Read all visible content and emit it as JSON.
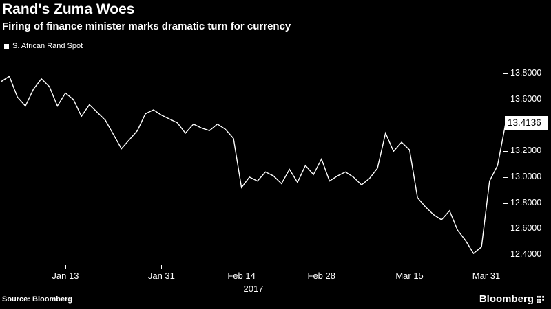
{
  "footer": {
    "source": "Source: Bloomberg",
    "brand": "Bloomberg"
  },
  "colors": {
    "background": "#000000",
    "line": "#ffffff",
    "text": "#ffffff",
    "badge_bg": "#ffffff",
    "badge_text": "#000000"
  },
  "chart_data": {
    "type": "line",
    "title": "Rand's Zuma Woes",
    "subtitle": "Firing of finance minister marks dramatic turn for currency",
    "legend_position": "top-left",
    "grid": false,
    "background": "#000000",
    "last_price_label": "13.4136",
    "x_axis": {
      "tick_labels": [
        "Jan 13",
        "Jan 31",
        "Feb 14",
        "Feb 28",
        "Mar 15",
        "Mar 31"
      ],
      "year_label": "2017"
    },
    "y_axis": {
      "side": "right",
      "tick_labels": [
        "13.8000",
        "13.6000",
        "13.2000",
        "13.0000",
        "12.8000",
        "12.6000",
        "12.4000"
      ],
      "ylim": [
        12.32,
        13.86
      ]
    },
    "series": [
      {
        "name": "S. African Rand Spot",
        "color": "#ffffff",
        "x": [
          "Jan 3",
          "Jan 4",
          "Jan 5",
          "Jan 6",
          "Jan 9",
          "Jan 10",
          "Jan 11",
          "Jan 12",
          "Jan 13",
          "Jan 16",
          "Jan 17",
          "Jan 18",
          "Jan 19",
          "Jan 20",
          "Jan 23",
          "Jan 24",
          "Jan 25",
          "Jan 26",
          "Jan 27",
          "Jan 30",
          "Jan 31",
          "Feb 1",
          "Feb 2",
          "Feb 3",
          "Feb 6",
          "Feb 7",
          "Feb 8",
          "Feb 9",
          "Feb 10",
          "Feb 13",
          "Feb 14",
          "Feb 15",
          "Feb 16",
          "Feb 17",
          "Feb 20",
          "Feb 21",
          "Feb 22",
          "Feb 23",
          "Feb 24",
          "Feb 27",
          "Feb 28",
          "Mar 1",
          "Mar 2",
          "Mar 3",
          "Mar 6",
          "Mar 7",
          "Mar 8",
          "Mar 9",
          "Mar 10",
          "Mar 13",
          "Mar 14",
          "Mar 15",
          "Mar 16",
          "Mar 17",
          "Mar 20",
          "Mar 21",
          "Mar 22",
          "Mar 23",
          "Mar 24",
          "Mar 27",
          "Mar 28",
          "Mar 29",
          "Mar 30",
          "Mar 31"
        ],
        "values": [
          13.74,
          13.78,
          13.62,
          13.55,
          13.68,
          13.76,
          13.7,
          13.55,
          13.65,
          13.6,
          13.47,
          13.56,
          13.5,
          13.44,
          13.33,
          13.22,
          13.29,
          13.36,
          13.49,
          13.52,
          13.48,
          13.45,
          13.42,
          13.34,
          13.41,
          13.38,
          13.36,
          13.41,
          13.37,
          13.3,
          12.92,
          13.0,
          12.97,
          13.04,
          13.01,
          12.95,
          13.06,
          12.96,
          13.09,
          13.02,
          13.14,
          12.97,
          13.01,
          13.04,
          13.0,
          12.94,
          12.99,
          13.07,
          13.34,
          13.2,
          13.27,
          13.21,
          12.84,
          12.77,
          12.71,
          12.67,
          12.74,
          12.59,
          12.51,
          12.41,
          12.46,
          12.97,
          13.09,
          13.4136
        ]
      }
    ]
  }
}
